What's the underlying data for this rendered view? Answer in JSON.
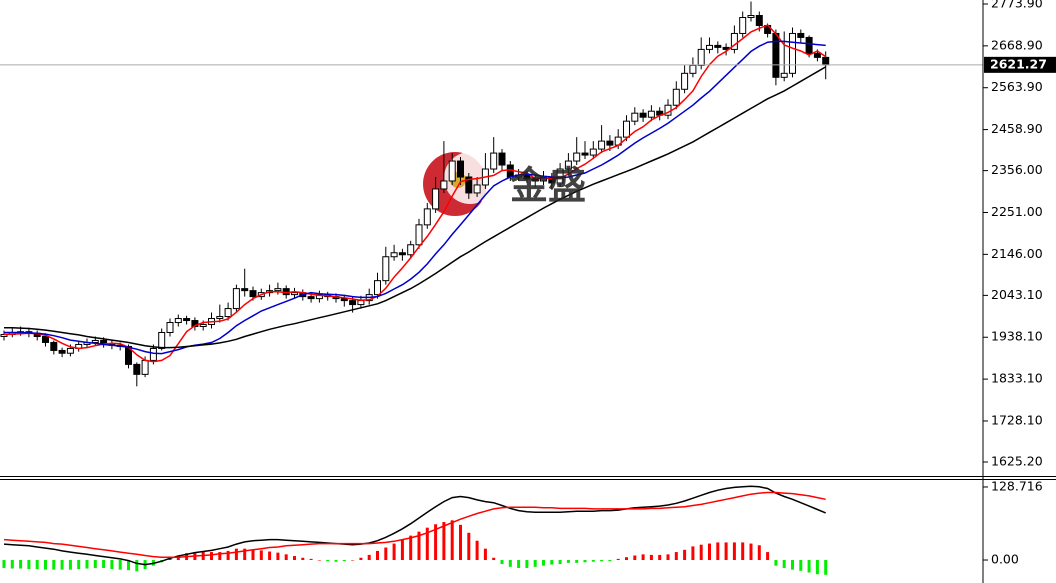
{
  "chart_data": [
    {
      "type": "candlestick",
      "watermark": "金盛",
      "open": [
        1940,
        1945,
        1950,
        1952,
        1948,
        1940,
        1925,
        1905,
        1898,
        1910,
        1920,
        1925,
        1930,
        1922,
        1918,
        1915,
        1870,
        1845,
        1880,
        1910,
        1950,
        1975,
        1985,
        1980,
        1965,
        1970,
        1985,
        1990,
        2010,
        2060,
        2055,
        2040,
        2050,
        2055,
        2060,
        2045,
        2050,
        2040,
        2035,
        2045,
        2040,
        2035,
        2030,
        2020,
        2030,
        2045,
        2080,
        2140,
        2150,
        2145,
        2170,
        2220,
        2260,
        2310,
        2330,
        2380,
        2340,
        2300,
        2320,
        2360,
        2400,
        2370,
        2340,
        2345,
        2335,
        2330,
        2340,
        2325,
        2360,
        2380,
        2400,
        2395,
        2410,
        2430,
        2420,
        2440,
        2480,
        2500,
        2490,
        2505,
        2495,
        2520,
        2560,
        2600,
        2620,
        2660,
        2670,
        2665,
        2660,
        2700,
        2740,
        2745,
        2720,
        2700,
        2590,
        2600,
        2700,
        2690,
        2650,
        2640
      ],
      "high": [
        1955,
        1960,
        1965,
        1962,
        1955,
        1948,
        1930,
        1912,
        1920,
        1930,
        1935,
        1940,
        1938,
        1930,
        1925,
        1920,
        1875,
        1890,
        1920,
        1960,
        1985,
        1995,
        1992,
        1988,
        1980,
        2000,
        2020,
        2025,
        2070,
        2110,
        2065,
        2060,
        2070,
        2075,
        2068,
        2062,
        2058,
        2050,
        2055,
        2052,
        2048,
        2045,
        2040,
        2042,
        2060,
        2100,
        2165,
        2170,
        2160,
        2180,
        2235,
        2275,
        2340,
        2430,
        2400,
        2390,
        2350,
        2340,
        2400,
        2440,
        2410,
        2380,
        2360,
        2355,
        2345,
        2355,
        2350,
        2375,
        2400,
        2440,
        2430,
        2430,
        2470,
        2445,
        2460,
        2495,
        2515,
        2510,
        2520,
        2515,
        2535,
        2580,
        2620,
        2640,
        2690,
        2690,
        2680,
        2675,
        2720,
        2755,
        2780,
        2755,
        2725,
        2710,
        2705,
        2715,
        2710,
        2695,
        2660,
        2655
      ],
      "low": [
        1930,
        1938,
        1942,
        1938,
        1930,
        1915,
        1895,
        1888,
        1890,
        1902,
        1912,
        1918,
        1912,
        1908,
        1905,
        1860,
        1815,
        1838,
        1870,
        1905,
        1940,
        1965,
        1970,
        1955,
        1955,
        1960,
        1975,
        1980,
        2000,
        2040,
        2030,
        2032,
        2040,
        2045,
        2035,
        2035,
        2030,
        2025,
        2025,
        2030,
        2025,
        2015,
        2000,
        2010,
        2020,
        2035,
        2070,
        2130,
        2130,
        2138,
        2160,
        2210,
        2250,
        2300,
        2320,
        2320,
        2285,
        2290,
        2310,
        2350,
        2355,
        2330,
        2330,
        2325,
        2315,
        2320,
        2310,
        2315,
        2350,
        2370,
        2385,
        2385,
        2400,
        2405,
        2410,
        2430,
        2470,
        2478,
        2480,
        2482,
        2485,
        2510,
        2550,
        2590,
        2610,
        2650,
        2650,
        2645,
        2650,
        2690,
        2730,
        2705,
        2690,
        2570,
        2580,
        2590,
        2675,
        2640,
        2630,
        2585
      ],
      "close": [
        1945,
        1950,
        1952,
        1948,
        1940,
        1925,
        1905,
        1898,
        1910,
        1920,
        1925,
        1930,
        1922,
        1918,
        1915,
        1870,
        1845,
        1880,
        1910,
        1950,
        1975,
        1985,
        1980,
        1965,
        1970,
        1985,
        1990,
        2010,
        2060,
        2055,
        2040,
        2050,
        2055,
        2060,
        2045,
        2050,
        2040,
        2035,
        2045,
        2040,
        2035,
        2030,
        2020,
        2030,
        2045,
        2080,
        2140,
        2150,
        2145,
        2170,
        2220,
        2260,
        2310,
        2330,
        2380,
        2340,
        2300,
        2320,
        2360,
        2400,
        2370,
        2340,
        2345,
        2335,
        2330,
        2340,
        2325,
        2360,
        2380,
        2400,
        2395,
        2410,
        2430,
        2420,
        2440,
        2480,
        2500,
        2490,
        2505,
        2495,
        2520,
        2560,
        2600,
        2620,
        2660,
        2670,
        2665,
        2660,
        2700,
        2740,
        2745,
        2720,
        2700,
        2590,
        2600,
        2700,
        2690,
        2650,
        2640,
        2621.27
      ],
      "up_color": "#ffffff",
      "down_color": "#000000",
      "outline_color": "#000000",
      "series": [
        {
          "color": "#ff0000",
          "values": [
            1945,
            1946,
            1947,
            1948,
            1947,
            1943,
            1934,
            1923,
            1914,
            1910,
            1912,
            1917,
            1921,
            1923,
            1922,
            1913,
            1894,
            1880,
            1877,
            1880,
            1892,
            1922,
            1952,
            1967,
            1975,
            1977,
            1978,
            1984,
            2001,
            2020,
            2035,
            2045,
            2052,
            2052,
            2050,
            2052,
            2050,
            2046,
            2043,
            2042,
            2039,
            2037,
            2034,
            2031,
            2032,
            2041,
            2061,
            2089,
            2112,
            2137,
            2165,
            2191,
            2221,
            2253,
            2292,
            2328,
            2334,
            2336,
            2340,
            2344,
            2356,
            2358,
            2353,
            2350,
            2336,
            2338,
            2335,
            2338,
            2347,
            2361,
            2372,
            2387,
            2403,
            2411,
            2419,
            2437,
            2454,
            2466,
            2483,
            2494,
            2502,
            2514,
            2534,
            2556,
            2592,
            2622,
            2643,
            2655,
            2671,
            2687,
            2704,
            2713,
            2721,
            2699,
            2671,
            2663,
            2656,
            2646,
            2656,
            2642
          ]
        },
        {
          "color": "#0000cc",
          "values": [
            1950,
            1950,
            1950,
            1949,
            1948,
            1946,
            1942,
            1937,
            1931,
            1928,
            1925,
            1923,
            1920,
            1918,
            1916,
            1913,
            1908,
            1902,
            1898,
            1897,
            1902,
            1907,
            1914,
            1918,
            1921,
            1925,
            1935,
            1950,
            1967,
            1980,
            1992,
            2004,
            2012,
            2020,
            2028,
            2036,
            2045,
            2050,
            2047,
            2046,
            2045,
            2043,
            2040,
            2038,
            2038,
            2040,
            2048,
            2059,
            2070,
            2084,
            2101,
            2122,
            2147,
            2170,
            2196,
            2220,
            2245,
            2270,
            2295,
            2318,
            2330,
            2340,
            2345,
            2347,
            2345,
            2342,
            2340,
            2338,
            2340,
            2345,
            2350,
            2360,
            2370,
            2382,
            2395,
            2410,
            2425,
            2438,
            2450,
            2462,
            2475,
            2490,
            2505,
            2520,
            2538,
            2555,
            2575,
            2595,
            2615,
            2635,
            2655,
            2668,
            2678,
            2680,
            2680,
            2678,
            2676,
            2674,
            2672,
            2670
          ]
        },
        {
          "color": "#000000",
          "values": [
            1962,
            1962,
            1961,
            1960,
            1958,
            1956,
            1953,
            1950,
            1947,
            1944,
            1940,
            1937,
            1934,
            1931,
            1928,
            1925,
            1921,
            1917,
            1914,
            1912,
            1912,
            1913,
            1915,
            1917,
            1919,
            1921,
            1924,
            1928,
            1933,
            1940,
            1946,
            1952,
            1958,
            1963,
            1968,
            1972,
            1977,
            1982,
            1987,
            1992,
            1997,
            2002,
            2007,
            2012,
            2017,
            2022,
            2030,
            2040,
            2050,
            2060,
            2072,
            2085,
            2098,
            2112,
            2126,
            2140,
            2152,
            2165,
            2178,
            2190,
            2202,
            2214,
            2226,
            2238,
            2250,
            2262,
            2273,
            2284,
            2294,
            2304,
            2313,
            2322,
            2330,
            2338,
            2346,
            2354,
            2362,
            2371,
            2380,
            2389,
            2398,
            2408,
            2418,
            2428,
            2440,
            2452,
            2464,
            2476,
            2488,
            2500,
            2512,
            2524,
            2536,
            2546,
            2556,
            2568,
            2580,
            2592,
            2604,
            2616
          ]
        }
      ],
      "ylim": [
        1590.1,
        2783.9
      ],
      "yticks": [
        {
          "value": 2773.9,
          "label": "2773.90"
        },
        {
          "value": 2668.9,
          "label": "2668.90"
        },
        {
          "value": 2563.9,
          "label": "2563.90"
        },
        {
          "value": 2458.9,
          "label": "2458.90"
        },
        {
          "value": 2356,
          "label": "2356.00"
        },
        {
          "value": 2251,
          "label": "2251.00"
        },
        {
          "value": 2146,
          "label": "2146.00"
        },
        {
          "value": 2043.1,
          "label": "2043.10"
        },
        {
          "value": 1938.1,
          "label": "1938.10"
        },
        {
          "value": 1833.1,
          "label": "1833.10"
        },
        {
          "value": 1728.1,
          "label": "1728.10"
        },
        {
          "value": 1625.2,
          "label": "1625.20"
        }
      ],
      "last_price": 2621.27
    },
    {
      "type": "macd",
      "histogram": {
        "up_color": "#ff0000",
        "down_color": "#00ee00",
        "values": [
          -14,
          -15,
          -15,
          -16,
          -16,
          -17,
          -17,
          -17,
          -17,
          -16,
          -15,
          -14,
          -14,
          -16,
          -17,
          -18,
          -20,
          -16,
          -10,
          -4,
          4,
          8,
          12,
          14,
          14,
          14,
          14,
          16,
          20,
          20,
          18,
          17,
          15,
          13,
          10,
          7,
          4,
          2,
          0,
          -2,
          -3,
          -2,
          0,
          4,
          9,
          16,
          22,
          29,
          36,
          43,
          50,
          57,
          63,
          67,
          70,
          62,
          48,
          34,
          20,
          4,
          -7,
          -12,
          -14,
          -14,
          -12,
          -10,
          -8,
          -7,
          -5,
          -5,
          -4,
          -3,
          -2,
          -2,
          2,
          5,
          8,
          10,
          9,
          9,
          10,
          14,
          18,
          24,
          27,
          29,
          31,
          31,
          31,
          31,
          29,
          26,
          14,
          -10,
          -14,
          -17,
          -19,
          -22,
          -25,
          -26
        ]
      },
      "series": [
        {
          "color": "#000000",
          "values": [
            28,
            27,
            26,
            25,
            23,
            21,
            19,
            16,
            14,
            12,
            10,
            8,
            6,
            4,
            2,
            -1,
            -6,
            -8,
            -6,
            -2,
            3,
            7,
            10,
            13,
            15,
            17,
            20,
            23,
            28,
            32,
            34,
            35,
            36,
            36,
            35,
            34,
            33,
            32,
            31,
            30,
            29,
            28,
            27,
            28,
            30,
            34,
            40,
            47,
            55,
            64,
            74,
            84,
            94,
            103,
            110,
            112,
            110,
            106,
            103,
            101,
            96,
            91,
            87,
            85,
            84,
            84,
            84,
            84,
            85,
            86,
            86,
            86,
            87,
            87,
            88,
            90,
            92,
            93,
            94,
            95,
            97,
            100,
            104,
            109,
            114,
            119,
            123,
            126,
            128,
            129,
            130,
            129,
            126,
            118,
            112,
            107,
            101,
            95,
            89,
            83
          ]
        },
        {
          "color": "#ff0000",
          "values": [
            36,
            35,
            34,
            33,
            32,
            31,
            29,
            28,
            26,
            24,
            22,
            20,
            18,
            16,
            14,
            12,
            10,
            8,
            6,
            5,
            5,
            5,
            6,
            7,
            8,
            9,
            11,
            12,
            14,
            16,
            18,
            20,
            22,
            23,
            25,
            26,
            27,
            28,
            29,
            29,
            29,
            29,
            29,
            29,
            29,
            30,
            31,
            33,
            36,
            39,
            43,
            48,
            54,
            60,
            66,
            72,
            77,
            82,
            86,
            90,
            92,
            93,
            93,
            93,
            93,
            92,
            92,
            91,
            91,
            91,
            91,
            90,
            90,
            90,
            90,
            90,
            90,
            90,
            91,
            91,
            92,
            93,
            94,
            96,
            98,
            101,
            104,
            107,
            110,
            113,
            116,
            118,
            119,
            119,
            118,
            117,
            115,
            113,
            110,
            107
          ]
        }
      ],
      "ylim": [
        -40.5,
        141.0
      ],
      "yticks": [
        128.716,
        {
          "value": 0,
          "label": "0.00"
        }
      ]
    }
  ]
}
